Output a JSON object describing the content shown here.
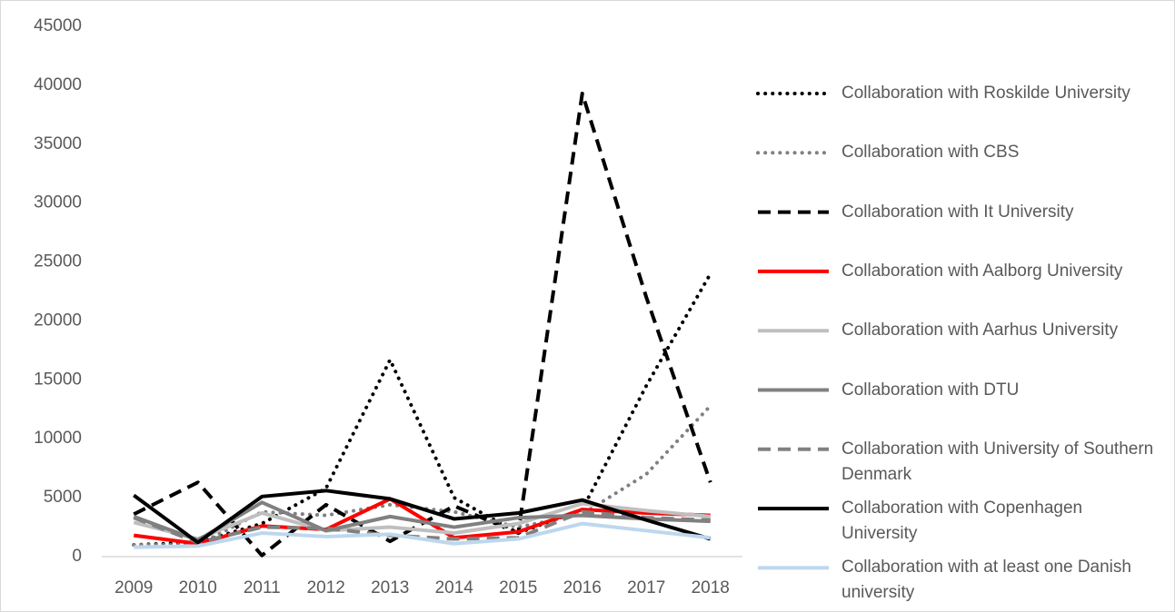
{
  "chart_data": {
    "type": "line",
    "x": [
      2009,
      2010,
      2011,
      2012,
      2013,
      2014,
      2015,
      2016,
      2017,
      2018
    ],
    "ylim": [
      0,
      45000
    ],
    "yticks": [
      0,
      5000,
      10000,
      15000,
      20000,
      25000,
      30000,
      35000,
      40000,
      45000
    ],
    "grid": false,
    "legend": "right",
    "series": [
      {
        "name": "Collaboration with Roskilde University",
        "color": "#000000",
        "style": "dotted",
        "values": [
          1000,
          1200,
          2800,
          5800,
          16700,
          5000,
          2000,
          4000,
          14500,
          24000
        ]
      },
      {
        "name": "Collaboration with CBS",
        "color": "#808080",
        "style": "dotted",
        "values": [
          1000,
          1000,
          3800,
          3500,
          4400,
          3800,
          2500,
          3600,
          7000,
          12800
        ]
      },
      {
        "name": "Collaboration with It University",
        "color": "#000000",
        "style": "dashed",
        "values": [
          3600,
          6300,
          100,
          4400,
          1300,
          4300,
          2000,
          39300,
          22000,
          6300
        ]
      },
      {
        "name": "Collaboration with Aalborg University",
        "color": "#ff0000",
        "style": "solid",
        "values": [
          1800,
          1100,
          2600,
          2300,
          4900,
          1600,
          2100,
          4000,
          3700,
          3500
        ]
      },
      {
        "name": "Collaboration with Aarhus University",
        "color": "#bfbfbf",
        "style": "solid",
        "values": [
          2900,
          1500,
          3700,
          2200,
          2500,
          2000,
          2800,
          4500,
          3900,
          3400
        ]
      },
      {
        "name": "Collaboration with DTU",
        "color": "#808080",
        "style": "solid",
        "values": [
          3400,
          1400,
          4600,
          2200,
          3400,
          2500,
          3300,
          3500,
          3200,
          3000
        ]
      },
      {
        "name": "Collaboration with University of Southern Denmark",
        "color": "#808080",
        "style": "dashed",
        "values": [
          3300,
          1200,
          2500,
          2400,
          1800,
          1500,
          1600,
          3800,
          3300,
          3100
        ]
      },
      {
        "name": "Collaboration with Copenhagen University",
        "color": "#000000",
        "style": "solid",
        "values": [
          5200,
          1200,
          5100,
          5600,
          4900,
          3200,
          3700,
          4800,
          3100,
          1500
        ]
      },
      {
        "name": "Collaboration with at least one Danish university",
        "color": "#bdd7ee",
        "style": "solid",
        "values": [
          800,
          900,
          2000,
          1700,
          1900,
          1100,
          1500,
          2800,
          2200,
          1600
        ]
      }
    ]
  }
}
